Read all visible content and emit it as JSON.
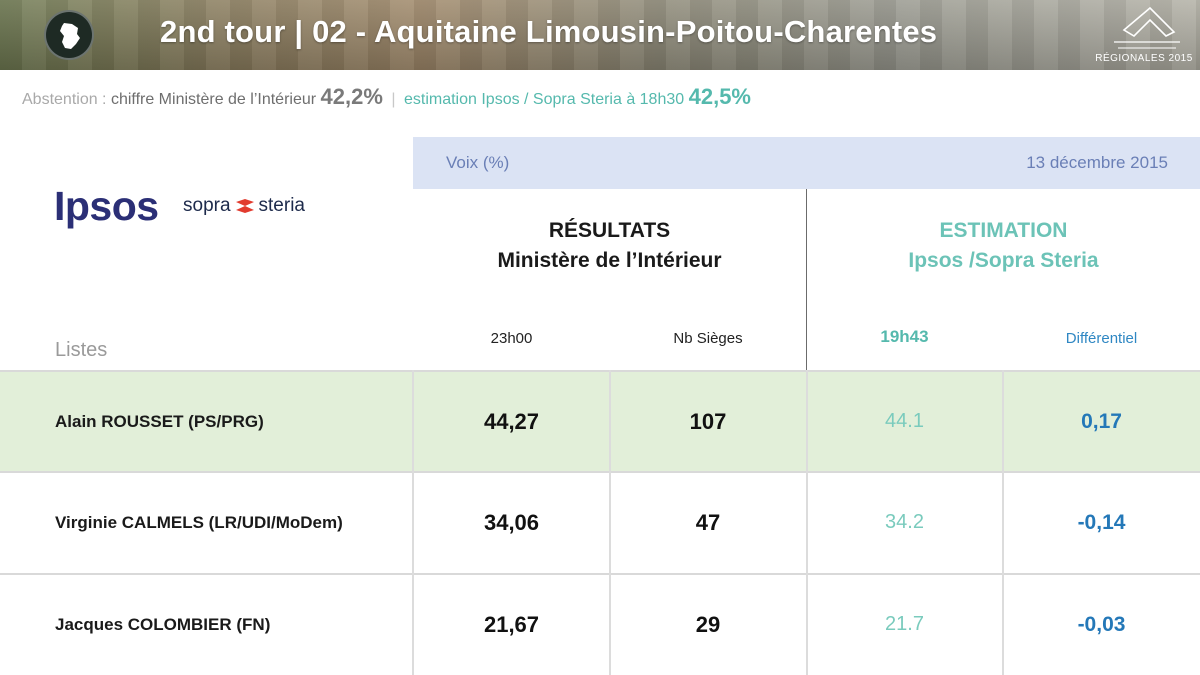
{
  "header": {
    "title": "2nd tour | 02 - Aquitaine Limousin-Poitou-Charentes",
    "brand_label": "RÉGIONALES 2015"
  },
  "abstention": {
    "label": "Abstention",
    "colon": " : ",
    "ministere_label": "chiffre Ministère de l’Intérieur",
    "ministere_value": "42,2%",
    "separator": "|",
    "ipsos_label": "estimation Ipsos / Sopra Steria à 18h30",
    "ipsos_value": "42,5%"
  },
  "logos": {
    "ipsos": "Ipsos",
    "sopra_left": "sopra",
    "sopra_right": "steria"
  },
  "band": {
    "left": "Voix (%)",
    "right": "13 décembre 2015"
  },
  "sections": {
    "results_line1": "RÉSULTATS",
    "results_line2": "Ministère de l’Intérieur",
    "estimation_line1": "ESTIMATION",
    "estimation_line2": "Ipsos /Sopra Steria"
  },
  "columns": {
    "listes": "Listes",
    "time": "23h00",
    "seats": "Nb Sièges",
    "est_time": "19h43",
    "diff": "Différentiel"
  },
  "rows": [
    {
      "name": "Alain ROUSSET (PS/PRG)",
      "result": "44,27",
      "seats": "107",
      "estimate": "44.1",
      "diff": "0,17"
    },
    {
      "name": "Virginie CALMELS (LR/UDI/MoDem)",
      "result": "34,06",
      "seats": "47",
      "estimate": "34.2",
      "diff": "-0,14"
    },
    {
      "name": "Jacques COLOMBIER (FN)",
      "result": "21,67",
      "seats": "29",
      "estimate": "21.7",
      "diff": "-0,03"
    }
  ],
  "colors": {
    "highlight_row": "#e2efd9",
    "band": "#dbe3f4",
    "teal": "#55b9ad",
    "blue": "#2478b8",
    "ipsos_navy": "#2b2f76"
  }
}
